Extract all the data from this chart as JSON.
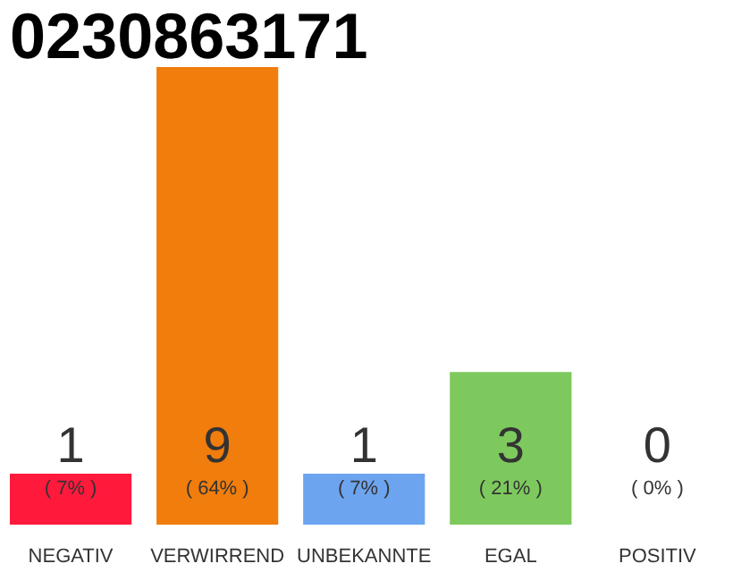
{
  "chart_data": {
    "type": "bar",
    "title": "0230863171",
    "categories": [
      "NEGATIV",
      "VERWIRREND",
      "UNBEKANNTE",
      "EGAL",
      "POSITIV"
    ],
    "values": [
      1,
      9,
      1,
      3,
      0
    ],
    "colors": [
      "#ff1a3c",
      "#f07d0c",
      "#6da4ef",
      "#7dc95e",
      "#cccccc"
    ],
    "data_labels": true,
    "annotations": [
      "( 7% )",
      "( 64% )",
      "( 7% )",
      "( 21% )",
      "( 0% )"
    ],
    "tick_labels": "x"
  }
}
